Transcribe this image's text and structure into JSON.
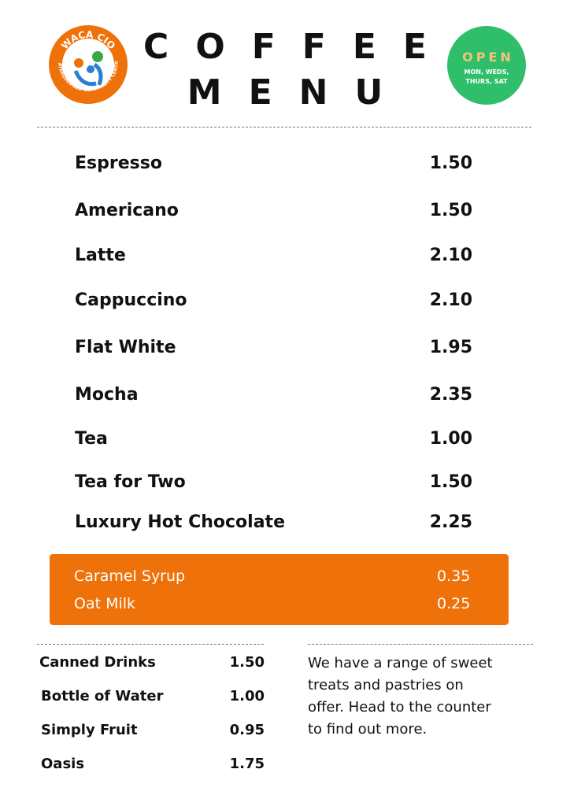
{
  "header": {
    "logo": {
      "name": "WACA CIO",
      "subtitle": "WATERLOOVILLE COMMUNITY CENTRE"
    },
    "title": [
      "COFFEE",
      "MENU"
    ],
    "badge": {
      "status": "OPEN",
      "days": [
        "MON, WEDS,",
        "THURS, SAT"
      ]
    }
  },
  "menu": [
    {
      "name": "Espresso",
      "price": "1.50"
    },
    {
      "name": "Americano",
      "price": "1.50"
    },
    {
      "name": "Latte",
      "price": "2.10"
    },
    {
      "name": "Cappuccino",
      "price": "2.10"
    },
    {
      "name": "Flat White",
      "price": "1.95"
    },
    {
      "name": "Mocha",
      "price": "2.35"
    },
    {
      "name": "Tea",
      "price": "1.00"
    },
    {
      "name": "Tea for Two",
      "price": "1.50"
    },
    {
      "name": "Luxury Hot Chocolate",
      "price": "2.25"
    }
  ],
  "extras": [
    {
      "name": "Caramel Syrup",
      "price": "0.35"
    },
    {
      "name": "Oat Milk",
      "price": "0.25"
    }
  ],
  "other_drinks": [
    {
      "name": "Canned Drinks",
      "price": "1.50"
    },
    {
      "name": "Bottle of Water",
      "price": "1.00"
    },
    {
      "name": "Simply Fruit",
      "price": "0.95"
    },
    {
      "name": "Oasis",
      "price": "1.75"
    }
  ],
  "note": [
    "We have a range of sweet",
    "treats and pastries on",
    "offer. Head to the counter",
    "to find out more."
  ]
}
